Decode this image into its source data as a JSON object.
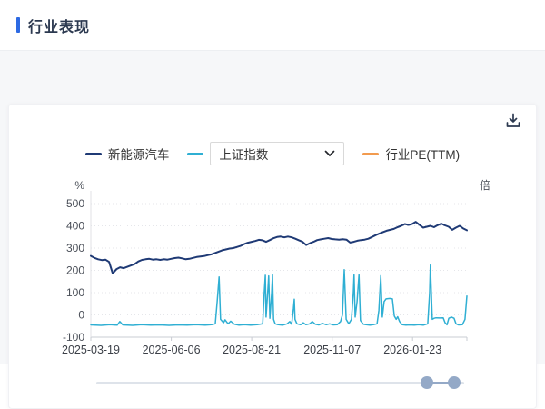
{
  "header": {
    "title": "行业表现"
  },
  "icons": {
    "download": "download-icon",
    "select_chevron": "chevron-down-icon"
  },
  "controls": {
    "index_select": {
      "value": "上证指数"
    }
  },
  "slider": {
    "start_pct": 89.9,
    "end_pct": 97.3
  },
  "colors": {
    "accent": "#2d6ae3",
    "navy": "#1f3a75",
    "cyan": "#2fafd3",
    "orange": "#f29b4f",
    "slider_handle": "#94a9c7"
  },
  "chart_data": {
    "type": "line",
    "title": "行业表现",
    "legend_position": "top",
    "grid": "dotted horizontal gridlines",
    "y_axis_left": {
      "unit": "%",
      "lim": [
        -100,
        500
      ],
      "ticks": [
        500,
        400,
        300,
        200,
        100,
        0,
        -100
      ]
    },
    "y_axis_right": {
      "unit": "倍"
    },
    "x_axis": {
      "tick_labels": [
        "2025-03-19",
        "2025-06-06",
        "2025-08-21",
        "2025-11-07",
        "2026-01-23"
      ]
    },
    "series": [
      {
        "name": "新能源汽车",
        "color": "#1f3a75",
        "width": 2,
        "values": [
          265,
          256,
          250,
          246,
          248,
          238,
          186,
          205,
          214,
          210,
          216,
          222,
          228,
          240,
          247,
          250,
          252,
          248,
          250,
          247,
          250,
          248,
          252,
          255,
          257,
          254,
          250,
          252,
          256,
          260,
          262,
          264,
          268,
          272,
          278,
          284,
          290,
          294,
          298,
          300,
          305,
          310,
          318,
          324,
          328,
          332,
          337,
          335,
          328,
          336,
          344,
          350,
          352,
          348,
          352,
          348,
          342,
          335,
          328,
          314,
          322,
          328,
          336,
          339,
          342,
          345,
          341,
          339,
          338,
          340,
          338,
          325,
          328,
          333,
          336,
          338,
          342,
          350,
          358,
          365,
          372,
          378,
          382,
          386,
          394,
          400,
          408,
          404,
          408,
          418,
          405,
          392,
          396,
          400,
          394,
          403,
          410,
          402,
          396,
          382,
          392,
          400,
          388,
          380
        ]
      },
      {
        "name": "上证指数",
        "color": "#2fafd3",
        "width": 1.5,
        "baseline": -45,
        "points": [
          [
            0,
            -45
          ],
          [
            0.027,
            -47
          ],
          [
            0.051,
            -44
          ],
          [
            0.07,
            -46
          ],
          [
            0.077,
            -30
          ],
          [
            0.085,
            -45
          ],
          [
            0.111,
            -47
          ],
          [
            0.135,
            -44
          ],
          [
            0.159,
            -46
          ],
          [
            0.184,
            -45
          ],
          [
            0.208,
            -47
          ],
          [
            0.232,
            -45
          ],
          [
            0.256,
            -46
          ],
          [
            0.28,
            -44
          ],
          [
            0.304,
            -46
          ],
          [
            0.321,
            -44
          ],
          [
            0.331,
            -40
          ],
          [
            0.336,
            60
          ],
          [
            0.341,
            170
          ],
          [
            0.345,
            -20
          ],
          [
            0.353,
            -35
          ],
          [
            0.357,
            -22
          ],
          [
            0.365,
            -40
          ],
          [
            0.372,
            -28
          ],
          [
            0.382,
            -42
          ],
          [
            0.394,
            -46
          ],
          [
            0.408,
            -44
          ],
          [
            0.425,
            -46
          ],
          [
            0.442,
            -44
          ],
          [
            0.457,
            -40
          ],
          [
            0.461,
            100
          ],
          [
            0.464,
            178
          ],
          [
            0.466,
            -10
          ],
          [
            0.471,
            120
          ],
          [
            0.473,
            175
          ],
          [
            0.476,
            -15
          ],
          [
            0.481,
            100
          ],
          [
            0.483,
            180
          ],
          [
            0.486,
            -20
          ],
          [
            0.49,
            -40
          ],
          [
            0.498,
            -44
          ],
          [
            0.51,
            -46
          ],
          [
            0.522,
            -40
          ],
          [
            0.529,
            -30
          ],
          [
            0.534,
            -42
          ],
          [
            0.539,
            30
          ],
          [
            0.541,
            70
          ],
          [
            0.543,
            -20
          ],
          [
            0.548,
            -40
          ],
          [
            0.558,
            -44
          ],
          [
            0.565,
            -35
          ],
          [
            0.572,
            -44
          ],
          [
            0.582,
            -40
          ],
          [
            0.589,
            -30
          ],
          [
            0.597,
            -42
          ],
          [
            0.606,
            -45
          ],
          [
            0.616,
            -38
          ],
          [
            0.626,
            -44
          ],
          [
            0.635,
            -40
          ],
          [
            0.645,
            -45
          ],
          [
            0.655,
            -44
          ],
          [
            0.664,
            -30
          ],
          [
            0.669,
            0
          ],
          [
            0.674,
            203
          ],
          [
            0.679,
            -20
          ],
          [
            0.686,
            -40
          ],
          [
            0.693,
            -20
          ],
          [
            0.698,
            100
          ],
          [
            0.7,
            180
          ],
          [
            0.703,
            -10
          ],
          [
            0.708,
            60
          ],
          [
            0.713,
            180
          ],
          [
            0.717,
            -25
          ],
          [
            0.725,
            -42
          ],
          [
            0.732,
            -44
          ],
          [
            0.742,
            -46
          ],
          [
            0.751,
            -44
          ],
          [
            0.761,
            -40
          ],
          [
            0.766,
            20
          ],
          [
            0.771,
            176
          ],
          [
            0.775,
            -10
          ],
          [
            0.78,
            60
          ],
          [
            0.785,
            72
          ],
          [
            0.795,
            74
          ],
          [
            0.802,
            72
          ],
          [
            0.807,
            -5
          ],
          [
            0.812,
            -20
          ],
          [
            0.816,
            -8
          ],
          [
            0.821,
            -30
          ],
          [
            0.828,
            -44
          ],
          [
            0.838,
            -46
          ],
          [
            0.848,
            -45
          ],
          [
            0.86,
            -46
          ],
          [
            0.872,
            -44
          ],
          [
            0.884,
            -46
          ],
          [
            0.896,
            -40
          ],
          [
            0.901,
            100
          ],
          [
            0.903,
            224
          ],
          [
            0.908,
            -20
          ],
          [
            0.913,
            -15
          ],
          [
            0.918,
            -13
          ],
          [
            0.928,
            -14
          ],
          [
            0.937,
            -13
          ],
          [
            0.942,
            -35
          ],
          [
            0.947,
            -44
          ],
          [
            0.952,
            -15
          ],
          [
            0.959,
            -10
          ],
          [
            0.966,
            -15
          ],
          [
            0.971,
            -40
          ],
          [
            0.978,
            -45
          ],
          [
            0.988,
            -44
          ],
          [
            0.995,
            -20
          ],
          [
            1,
            85
          ]
        ]
      },
      {
        "name": "行业PE(TTM)",
        "color": "#f29b4f",
        "width": 1.5,
        "points": []
      }
    ]
  }
}
